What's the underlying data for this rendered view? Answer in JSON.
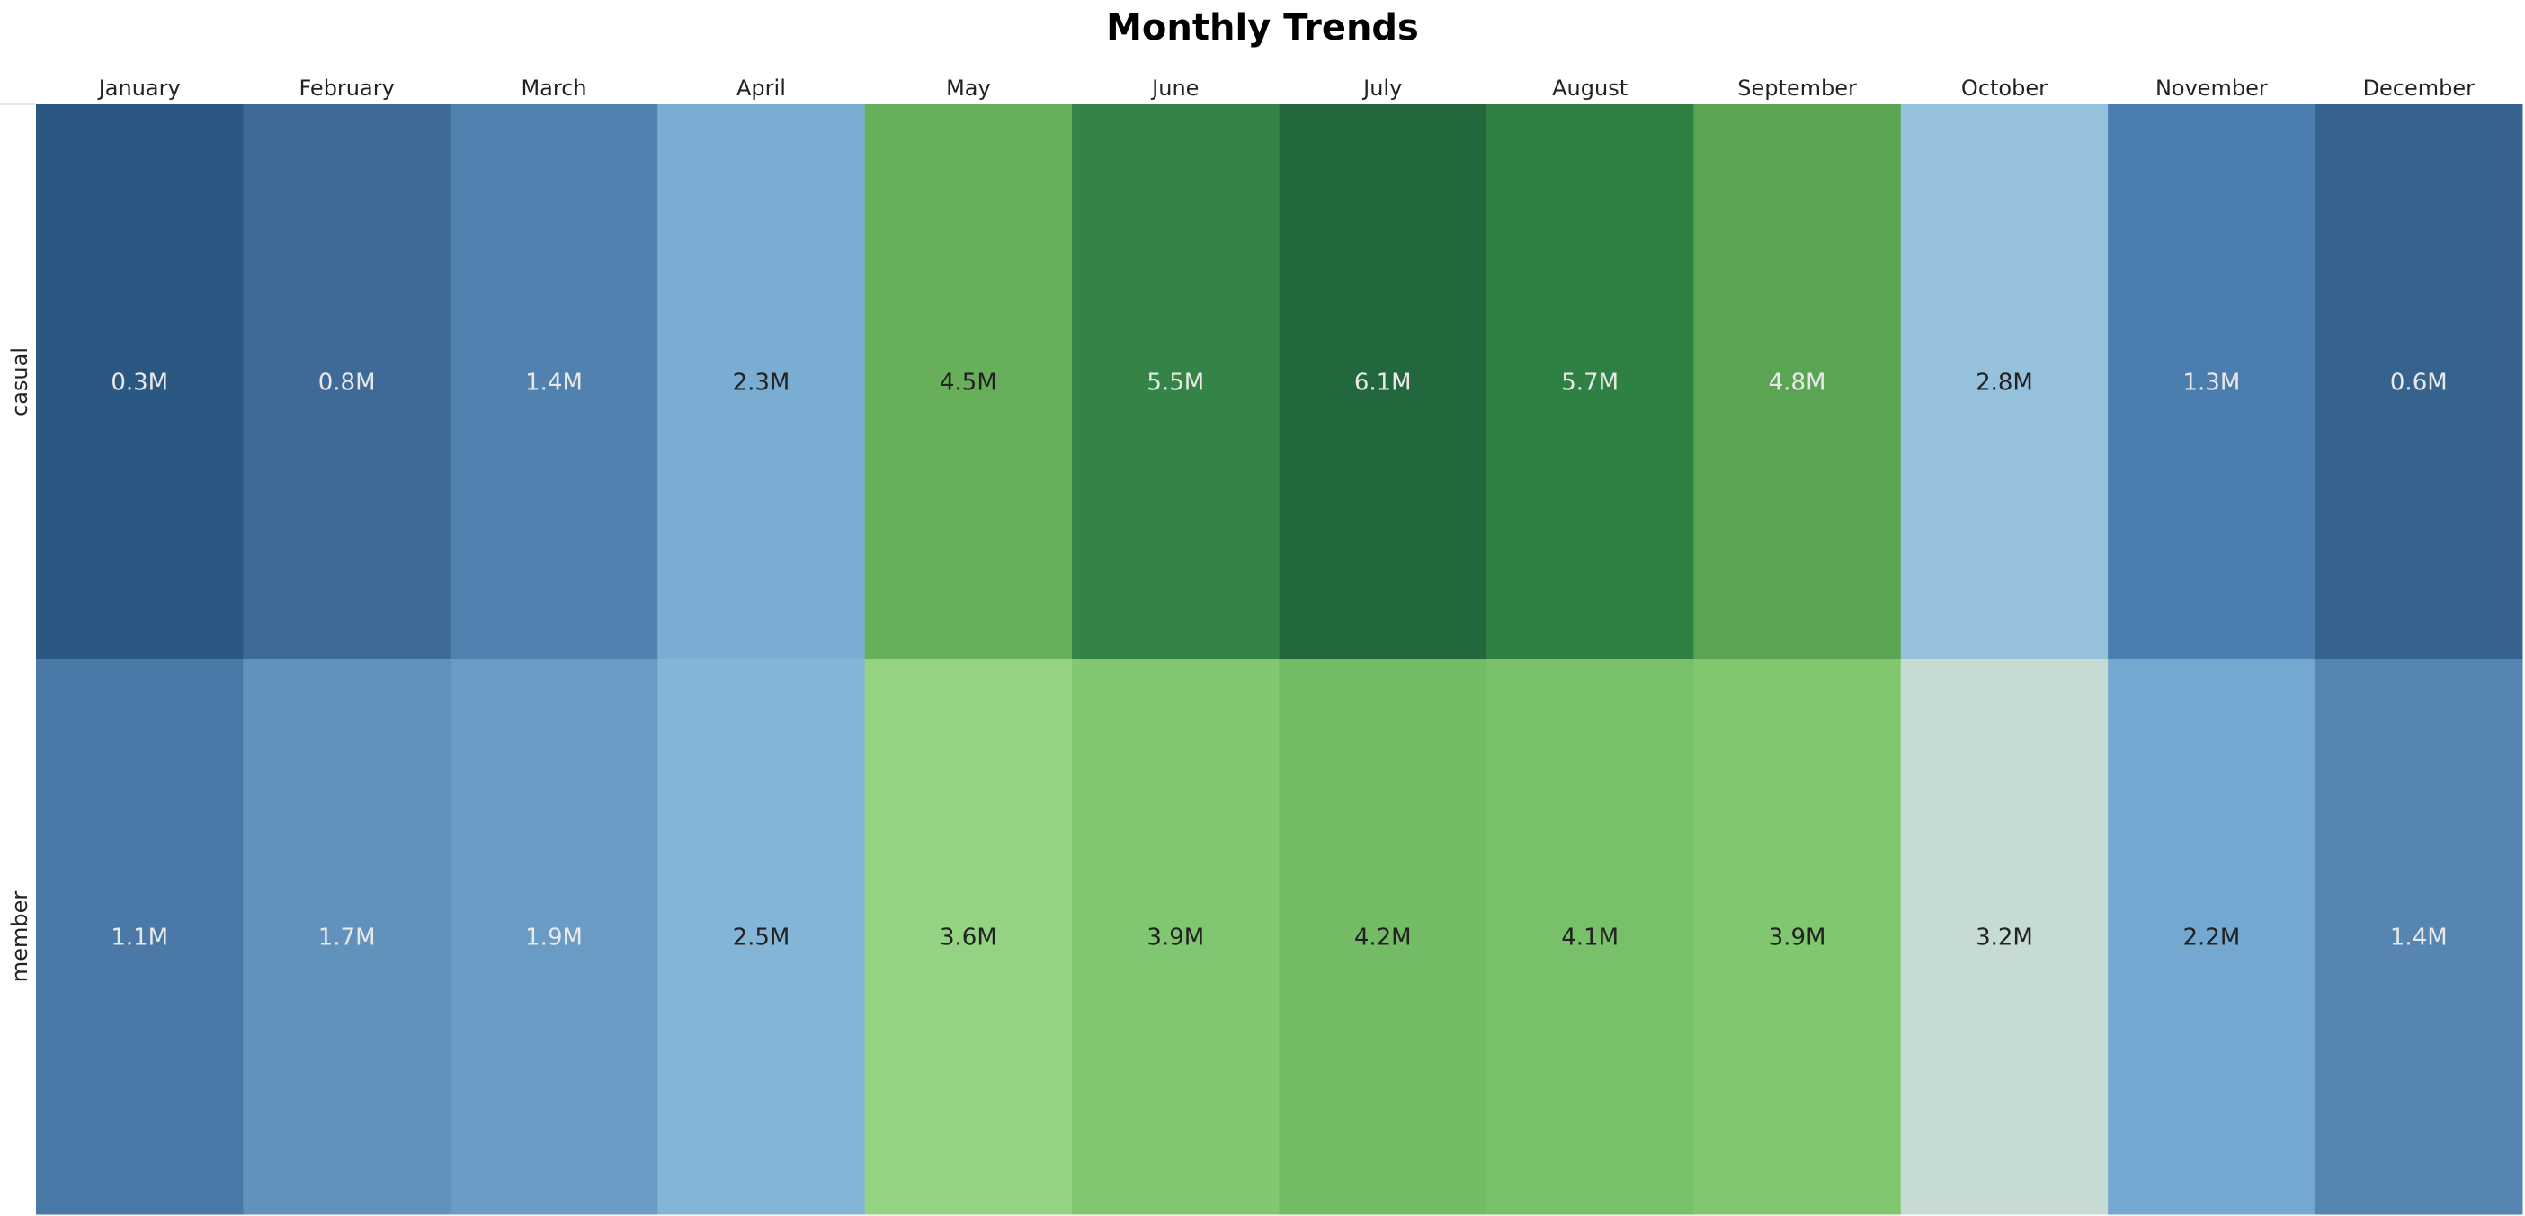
{
  "chart_data": {
    "type": "heatmap",
    "title": "Monthly Trends",
    "xlabel": "",
    "ylabel": "",
    "x_categories": [
      "January",
      "February",
      "March",
      "April",
      "May",
      "June",
      "July",
      "August",
      "September",
      "October",
      "November",
      "December"
    ],
    "y_categories": [
      "casual",
      "member"
    ],
    "values": [
      [
        0.3,
        0.8,
        1.4,
        2.3,
        4.5,
        5.5,
        6.1,
        5.7,
        4.8,
        2.8,
        1.3,
        0.6
      ],
      [
        1.1,
        1.7,
        1.9,
        2.5,
        3.6,
        3.9,
        4.2,
        4.1,
        3.9,
        3.2,
        2.2,
        1.4
      ]
    ],
    "labels": [
      [
        "0.3M",
        "0.8M",
        "1.4M",
        "2.3M",
        "4.5M",
        "5.5M",
        "6.1M",
        "5.7M",
        "4.8M",
        "2.8M",
        "1.3M",
        "0.6M"
      ],
      [
        "1.1M",
        "1.7M",
        "1.9M",
        "2.5M",
        "3.6M",
        "3.9M",
        "4.2M",
        "4.1M",
        "3.9M",
        "3.2M",
        "2.2M",
        "1.4M"
      ]
    ],
    "units": "M",
    "colors": [
      [
        "#2b5783",
        "#3d6a96",
        "#5182af",
        "#7badd3",
        "#67af5b",
        "#338446",
        "#23683c",
        "#2e8142",
        "#5ba453",
        "#96c1dc",
        "#4b7eae",
        "#36628e"
      ],
      [
        "#4a79a8",
        "#6192bc",
        "#699bc5",
        "#84b5d7",
        "#94d384",
        "#81c671",
        "#73bb64",
        "#78c069",
        "#80c76f",
        "#c7dbd5",
        "#74a8d0",
        "#5685b2"
      ]
    ],
    "label_colors": [
      [
        "#e8e8e8",
        "#e8e8e8",
        "#e8e8e8",
        "#222222",
        "#222222",
        "#e8e8e8",
        "#e8e8e8",
        "#e8e8e8",
        "#e8e8e8",
        "#222222",
        "#e8e8e8",
        "#e8e8e8"
      ],
      [
        "#e8e8e8",
        "#e8e8e8",
        "#e8e8e8",
        "#222222",
        "#222222",
        "#222222",
        "#222222",
        "#222222",
        "#222222",
        "#222222",
        "#222222",
        "#e8e8e8"
      ]
    ],
    "legend": "none",
    "grid": false
  }
}
